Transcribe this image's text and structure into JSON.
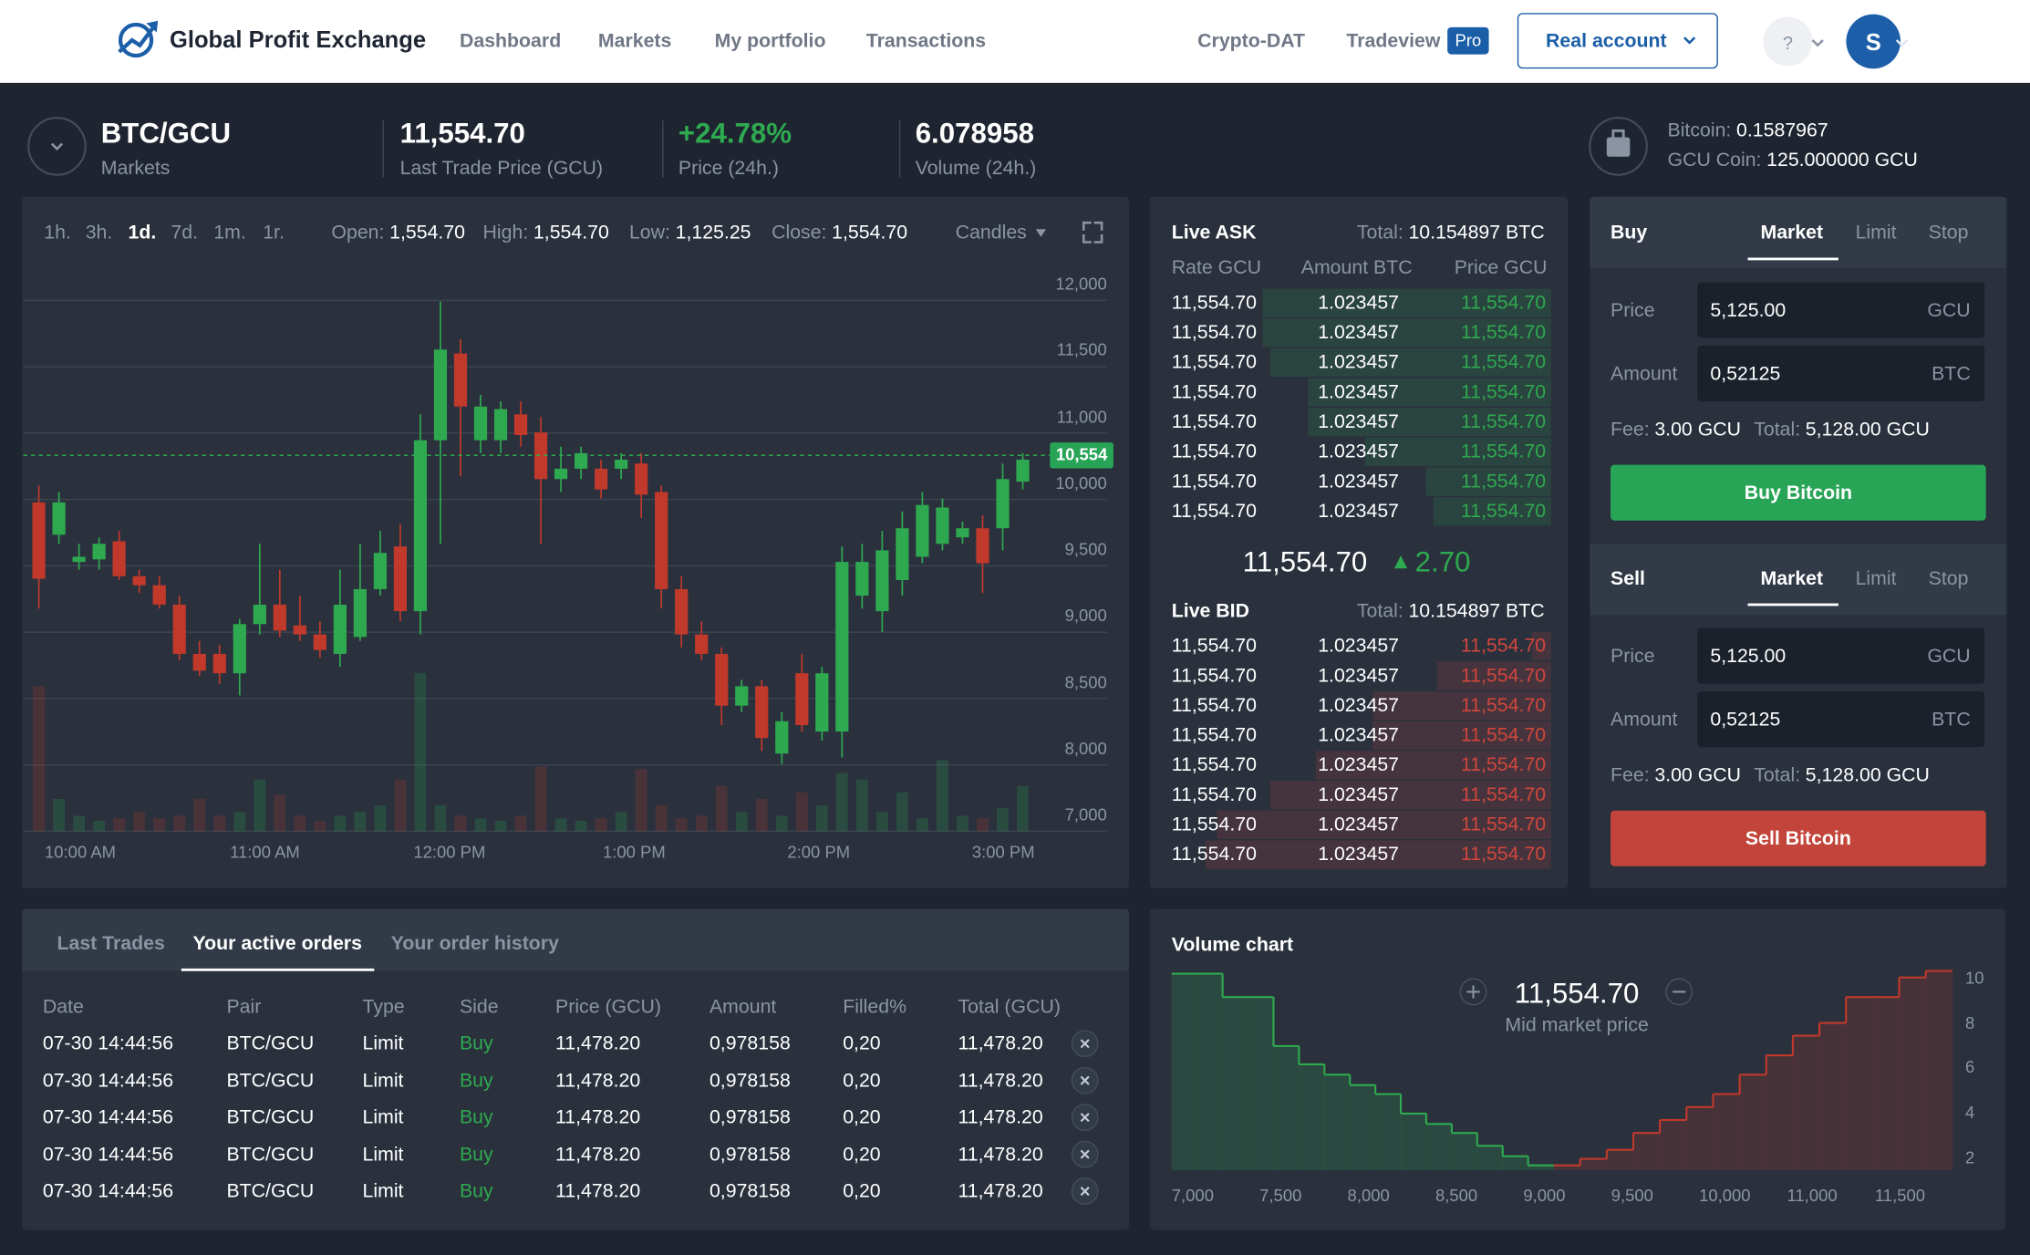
{
  "header": {
    "brand": "Global Profit Exchange",
    "nav": [
      "Dashboard",
      "Markets",
      "My portfolio",
      "Transactions"
    ],
    "links": [
      "Crypto-DAT",
      "Tradeview"
    ],
    "badge": "Pro",
    "account": "Real account",
    "help": "?",
    "avatar": "S"
  },
  "ticker": {
    "pair": "BTC/GCU",
    "pair_label": "Markets",
    "stats": [
      {
        "value": "11,554.70",
        "label": "Last Trade Price (GCU)"
      },
      {
        "value": "+24.78%",
        "label": "Price (24h.)"
      },
      {
        "value": "6.078958",
        "label": "Volume (24h.)"
      }
    ],
    "wallet": [
      {
        "label": "Bitcoin:",
        "value": "0.1587967"
      },
      {
        "label": "GCU Coin:",
        "value": "125.000000 GCU"
      }
    ]
  },
  "price_chart": {
    "type": "candlestick",
    "timeframes": [
      "1h.",
      "3h.",
      "1d.",
      "7d.",
      "1m.",
      "1r."
    ],
    "ohlc": [
      {
        "label": "Open:",
        "value": "1,554.70"
      },
      {
        "label": "High:",
        "value": "1,554.70"
      },
      {
        "label": "Low:",
        "value": "1,125.25"
      },
      {
        "label": "Close:",
        "value": "1,554.70"
      }
    ],
    "chart_type": "Candles",
    "price_labels": [
      "12,000",
      "11,500",
      "11,000",
      "10,000",
      "9,500",
      "9,000",
      "8,500",
      "8,000",
      "7,000"
    ],
    "time_labels": [
      "10:00 AM",
      "11:00 AM",
      "12:00 PM",
      "1:00 PM",
      "2:00 PM",
      "3:00 PM"
    ],
    "ylim": [
      6925,
      12050
    ],
    "up_color": "#2ea94f",
    "down_color": "#c0392b",
    "last_price": {
      "value": 10554,
      "label": "10,554"
    },
    "candles": [
      {
        "open": 10100,
        "high": 10262.5,
        "low": 9075,
        "close": 9362.5
      },
      {
        "open": 9787.5,
        "high": 10200,
        "low": 9700,
        "close": 10100
      },
      {
        "open": 9525,
        "high": 9700,
        "low": 9450,
        "close": 9575
      },
      {
        "open": 9550,
        "high": 9762.5,
        "low": 9450,
        "close": 9700
      },
      {
        "open": 9725,
        "high": 9825,
        "low": 9350,
        "close": 9387.5
      },
      {
        "open": 9387.5,
        "high": 9450,
        "low": 9225,
        "close": 9300
      },
      {
        "open": 9300,
        "high": 9387.5,
        "low": 9075,
        "close": 9112.5
      },
      {
        "open": 9112.5,
        "high": 9200,
        "low": 8575,
        "close": 8637.5
      },
      {
        "open": 8637.5,
        "high": 8762.5,
        "low": 8425,
        "close": 8475
      },
      {
        "open": 8637.5,
        "high": 8725,
        "low": 8350,
        "close": 8450
      },
      {
        "open": 8450,
        "high": 8975,
        "low": 8237.5,
        "close": 8925
      },
      {
        "open": 8925,
        "high": 9700,
        "low": 8825,
        "close": 9112.5
      },
      {
        "open": 9112.5,
        "high": 9450,
        "low": 8800,
        "close": 8862.5
      },
      {
        "open": 8912.5,
        "high": 9200,
        "low": 8762.5,
        "close": 8825
      },
      {
        "open": 8825,
        "high": 8950,
        "low": 8600,
        "close": 8675
      },
      {
        "open": 8637.5,
        "high": 9450,
        "low": 8512.5,
        "close": 9112.5
      },
      {
        "open": 8800,
        "high": 9700,
        "low": 8762.5,
        "close": 9262.5
      },
      {
        "open": 9262.5,
        "high": 9825,
        "low": 9200,
        "close": 9612.5
      },
      {
        "open": 9675,
        "high": 9887.5,
        "low": 8950,
        "close": 9050
      },
      {
        "open": 9050,
        "high": 10950,
        "low": 8825,
        "close": 10700
      },
      {
        "open": 10700,
        "high": 12037.5,
        "low": 9700,
        "close": 11575
      },
      {
        "open": 11537.5,
        "high": 11675,
        "low": 10350,
        "close": 11025
      },
      {
        "open": 10700,
        "high": 11137.5,
        "low": 10575,
        "close": 11025
      },
      {
        "open": 10700,
        "high": 11075,
        "low": 10575,
        "close": 11000
      },
      {
        "open": 10950,
        "high": 11075,
        "low": 10637.5,
        "close": 10750
      },
      {
        "open": 10775,
        "high": 10925,
        "low": 9700,
        "close": 10325
      },
      {
        "open": 10325,
        "high": 10637.5,
        "low": 10200,
        "close": 10425
      },
      {
        "open": 10425,
        "high": 10637.5,
        "low": 10325,
        "close": 10575
      },
      {
        "open": 10425,
        "high": 10512.5,
        "low": 10137.5,
        "close": 10225
      },
      {
        "open": 10425,
        "high": 10575,
        "low": 10325,
        "close": 10512.5
      },
      {
        "open": 10475,
        "high": 10575,
        "low": 9950,
        "close": 10175
      },
      {
        "open": 10200,
        "high": 10262.5,
        "low": 9075,
        "close": 9262.5
      },
      {
        "open": 9262.5,
        "high": 9387.5,
        "low": 8700,
        "close": 8825
      },
      {
        "open": 8825,
        "high": 8950,
        "low": 8575,
        "close": 8637.5
      },
      {
        "open": 8637.5,
        "high": 8700,
        "low": 7950,
        "close": 8137.5
      },
      {
        "open": 8137.5,
        "high": 8387.5,
        "low": 8075,
        "close": 8325
      },
      {
        "open": 8325,
        "high": 8387.5,
        "low": 7700,
        "close": 7825
      },
      {
        "open": 7675,
        "high": 8075,
        "low": 7575,
        "close": 7987.5
      },
      {
        "open": 8450,
        "high": 8637.5,
        "low": 7887.5,
        "close": 7950
      },
      {
        "open": 7887.5,
        "high": 8512.5,
        "low": 7800,
        "close": 8450
      },
      {
        "open": 7887.5,
        "high": 9675,
        "low": 7637.5,
        "close": 9525
      },
      {
        "open": 9200,
        "high": 9700,
        "low": 9075,
        "close": 9525
      },
      {
        "open": 9050,
        "high": 9825,
        "low": 8850,
        "close": 9637.5
      },
      {
        "open": 9350,
        "high": 10012.5,
        "low": 9200,
        "close": 9850
      },
      {
        "open": 9575,
        "high": 10200,
        "low": 9512.5,
        "close": 10075
      },
      {
        "open": 9700,
        "high": 10137.5,
        "low": 9637.5,
        "close": 10050
      },
      {
        "open": 9762.5,
        "high": 9912.5,
        "low": 9700,
        "close": 9850
      },
      {
        "open": 9850,
        "high": 9975,
        "low": 9225,
        "close": 9512.5
      },
      {
        "open": 9850,
        "high": 10475,
        "low": 9637.5,
        "close": 10325
      },
      {
        "open": 10300,
        "high": 10575,
        "low": 10225,
        "close": 10512.5
      }
    ],
    "volumes": [
      112,
      25,
      12,
      8,
      10,
      15,
      10,
      12,
      25,
      12,
      15,
      40,
      28,
      12,
      8,
      12,
      15,
      20,
      40,
      122,
      20,
      12,
      10,
      8,
      12,
      50,
      10,
      8,
      10,
      15,
      48,
      20,
      10,
      12,
      35,
      15,
      25,
      12,
      30,
      20,
      45,
      40,
      15,
      30,
      10,
      55,
      12,
      10,
      18,
      35
    ]
  },
  "order_book": {
    "ask": {
      "title": "Live ASK",
      "total_label": "Total:",
      "total": "10.154897 BTC",
      "columns": [
        "Rate GCU",
        "Amount BTC",
        "Price GCU"
      ],
      "rows": [
        [
          "11,554.70",
          "1.023457",
          "11,554.70"
        ],
        [
          "11,554.70",
          "1.023457",
          "11,554.70"
        ],
        [
          "11,554.70",
          "1.023457",
          "11,554.70"
        ],
        [
          "11,554.70",
          "1.023457",
          "11,554.70"
        ],
        [
          "11,554.70",
          "1.023457",
          "11,554.70"
        ],
        [
          "11,554.70",
          "1.023457",
          "11,554.70"
        ],
        [
          "11,554.70",
          "1.023457",
          "11,554.70"
        ],
        [
          "11,554.70",
          "1.023457",
          "11,554.70"
        ]
      ],
      "depth": [
        76,
        76,
        74,
        64,
        64,
        49,
        33,
        31
      ],
      "color": "#2ea94f"
    },
    "mid": {
      "price": "11,554.70",
      "change": "2.70"
    },
    "bid": {
      "title": "Live BID",
      "total_label": "Total:",
      "total": "10.154897 BTC",
      "rows": [
        [
          "11,554.70",
          "1.023457",
          "11,554.70"
        ],
        [
          "11,554.70",
          "1.023457",
          "11,554.70"
        ],
        [
          "11,554.70",
          "1.023457",
          "11,554.70"
        ],
        [
          "11,554.70",
          "1.023457",
          "11,554.70"
        ],
        [
          "11,554.70",
          "1.023457",
          "11,554.70"
        ],
        [
          "11,554.70",
          "1.023457",
          "11,554.70"
        ],
        [
          "11,554.70",
          "1.023457",
          "11,554.70"
        ],
        [
          "11,554.70",
          "1.023457",
          "11,554.70"
        ]
      ],
      "depth": [
        5,
        30,
        47,
        47,
        62,
        74,
        88,
        91
      ],
      "color": "#d1463c"
    }
  },
  "trade": [
    {
      "title": "Buy",
      "tabs": [
        "Market",
        "Limit",
        "Stop"
      ],
      "fields": [
        {
          "label": "Price",
          "value": "5,125.00",
          "unit": "GCU"
        },
        {
          "label": "Amount",
          "value": "0,52125",
          "unit": "BTC"
        }
      ],
      "fee_label": "Fee:",
      "fee": "3.00 GCU",
      "total_label": "Total:",
      "total": "5,128.00 GCU",
      "button": "Buy Bitcoin",
      "color": "#27a456"
    },
    {
      "title": "Sell",
      "tabs": [
        "Market",
        "Limit",
        "Stop"
      ],
      "fields": [
        {
          "label": "Price",
          "value": "5,125.00",
          "unit": "GCU"
        },
        {
          "label": "Amount",
          "value": "0,52125",
          "unit": "BTC"
        }
      ],
      "fee_label": "Fee:",
      "fee": "3.00 GCU",
      "total_label": "Total:",
      "total": "5,128.00 GCU",
      "button": "Sell Bitcoin",
      "color": "#c2443a"
    }
  ],
  "orders": {
    "tabs": [
      "Last Trades",
      "Your active orders",
      "Your order history"
    ],
    "columns": [
      "Date",
      "Pair",
      "Type",
      "Side",
      "Price (GCU)",
      "Amount",
      "Filled%",
      "Total (GCU)"
    ],
    "rows": [
      [
        "07-30 14:44:56",
        "BTC/GCU",
        "Limit",
        "Buy",
        "11,478.20",
        "0,978158",
        "0,20",
        "11,478.20"
      ],
      [
        "07-30 14:44:56",
        "BTC/GCU",
        "Limit",
        "Buy",
        "11,478.20",
        "0,978158",
        "0,20",
        "11,478.20"
      ],
      [
        "07-30 14:44:56",
        "BTC/GCU",
        "Limit",
        "Buy",
        "11,478.20",
        "0,978158",
        "0,20",
        "11,478.20"
      ],
      [
        "07-30 14:44:56",
        "BTC/GCU",
        "Limit",
        "Buy",
        "11,478.20",
        "0,978158",
        "0,20",
        "11,478.20"
      ],
      [
        "07-30 14:44:56",
        "BTC/GCU",
        "Limit",
        "Buy",
        "11,478.20",
        "0,978158",
        "0,20",
        "11,478.20"
      ]
    ]
  },
  "depth_chart": {
    "type": "step-area",
    "title": "Volume chart",
    "mid_price": "11,554.70",
    "mid_label": "Mid market price",
    "price_labels": [
      "7,000",
      "7,500",
      "8,000",
      "8,500",
      "9,000",
      "9,500",
      "10,000",
      "11,000",
      "11,500"
    ],
    "ylim": [
      1.5,
      10.4
    ],
    "yticks": [
      10,
      8,
      6,
      4,
      2
    ],
    "bids": {
      "color": "#2ea94f",
      "values": [
        10.23,
        10.23,
        9.19,
        9.19,
        7.01,
        6.2,
        5.74,
        5.28,
        4.88,
        4.01,
        3.55,
        3.15,
        2.58,
        2.12,
        1.71
      ]
    },
    "asks": {
      "color": "#c0392b",
      "values": [
        1.71,
        2.0,
        2.4,
        3.15,
        3.73,
        4.3,
        4.88,
        5.74,
        6.6,
        7.47,
        8.04,
        9.19,
        9.19,
        10.06,
        10.35
      ]
    }
  }
}
